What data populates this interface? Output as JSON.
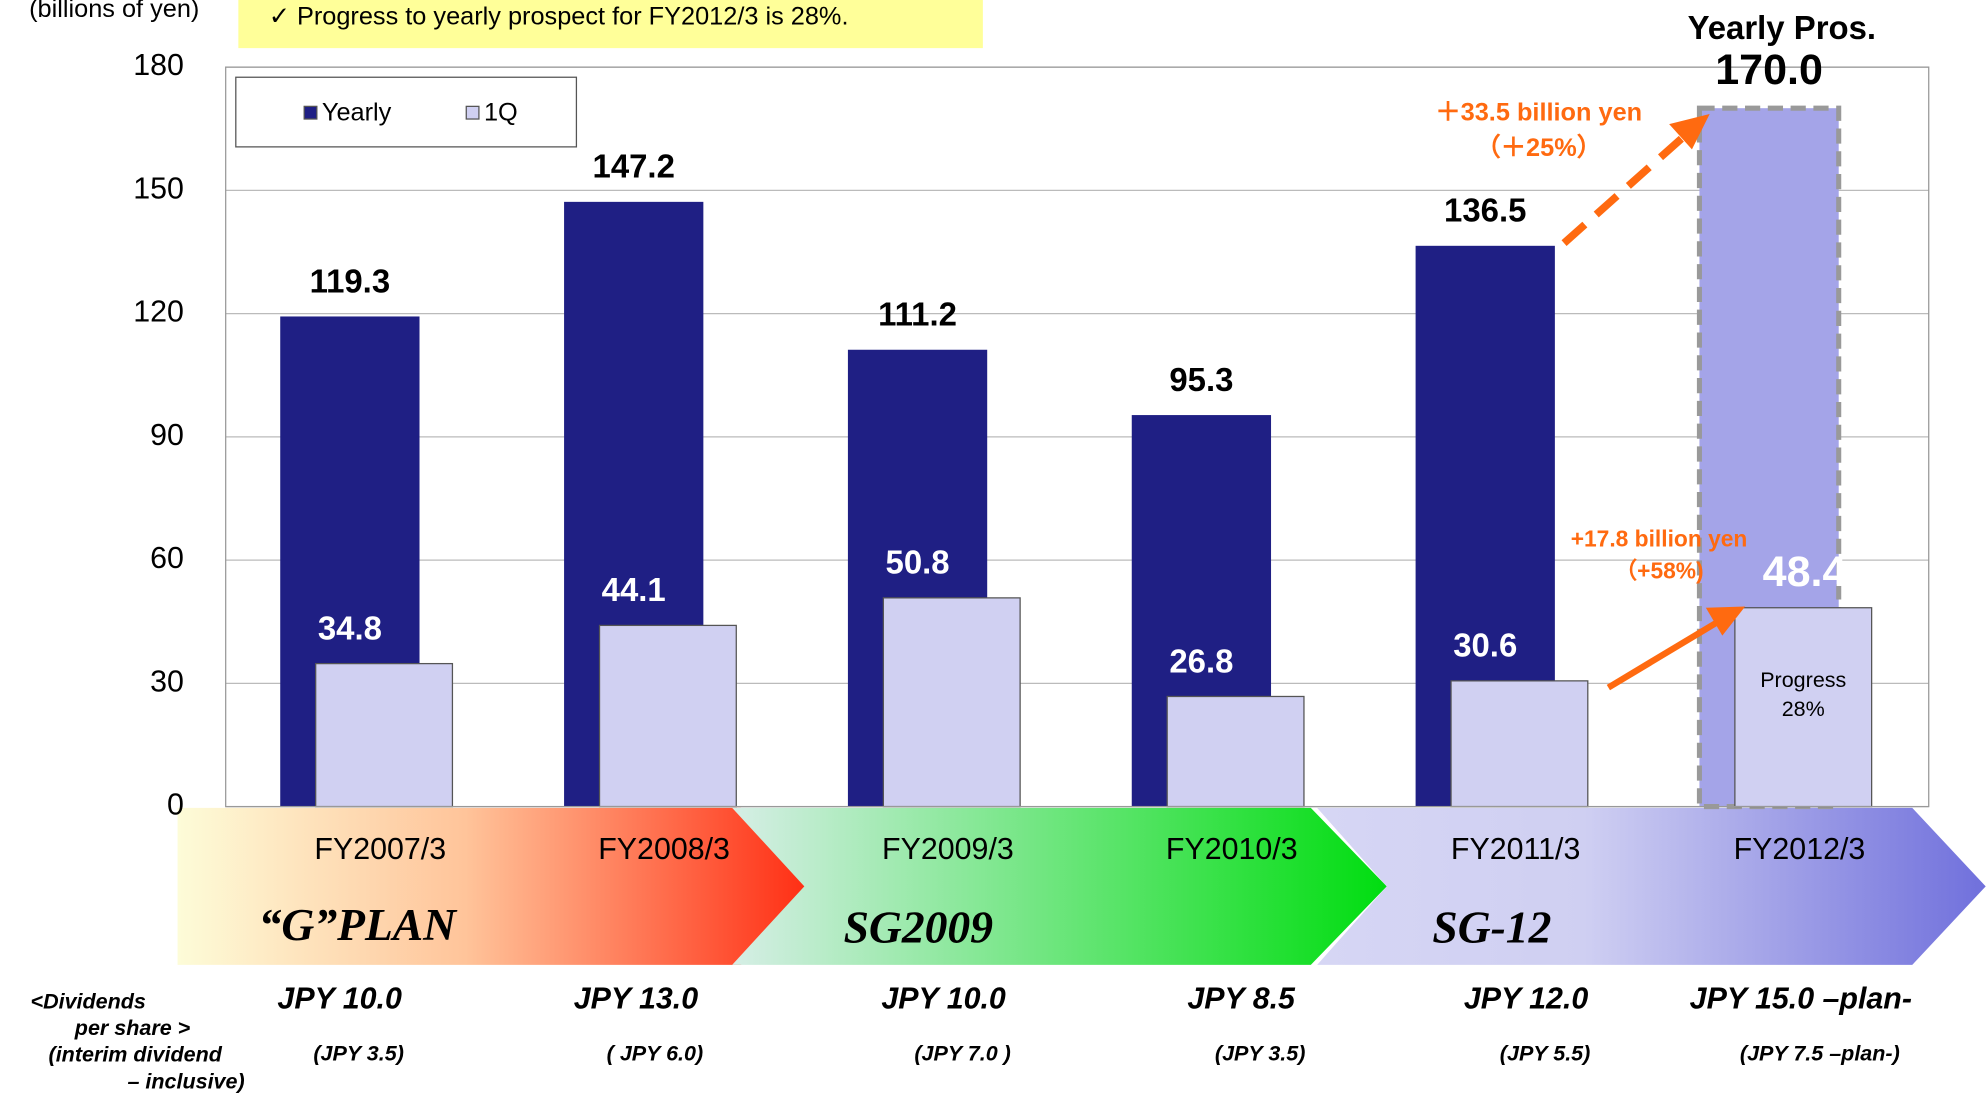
{
  "chart_data": {
    "type": "bar",
    "y_axis_label": "(billions of yen)",
    "note": "✓ Progress to yearly prospect for FY2012/3 is 28%.",
    "categories": [
      "FY2007/3",
      "FY2008/3",
      "FY2009/3",
      "FY2010/3",
      "FY2011/3",
      "FY2012/3"
    ],
    "series": [
      {
        "name": "Yearly",
        "color": "#1f1f84",
        "point_colors": [
          "#1f1f84",
          "#1f1f84",
          "#1f1f84",
          "#1f1f84",
          "#1f1f84",
          "#a4a4e8"
        ],
        "values": [
          119.3,
          147.2,
          111.2,
          95.3,
          136.5,
          170.0
        ],
        "value_labels": [
          "119.3",
          "147.2",
          "111.2",
          "95.3",
          "136.5",
          "170.0"
        ]
      },
      {
        "name": "1Q",
        "color": "#d0d0f2",
        "values": [
          34.8,
          44.1,
          50.8,
          26.8,
          30.6,
          48.4
        ],
        "value_labels": [
          "34.8",
          "44.1",
          "50.8",
          "26.8",
          "30.6",
          "48.4"
        ]
      }
    ],
    "ylim": [
      0,
      180
    ],
    "yticks": [
      0,
      30,
      60,
      90,
      120,
      150,
      180
    ],
    "grid": true,
    "legend": "top-left",
    "annotations": {
      "yearly_pros": "Yearly Pros.",
      "yearly_change": "＋33.5 billion yen",
      "yearly_change_pct": "（＋25%）",
      "q1_change": "+17.8 billion yen",
      "q1_change_pct": "（+58%)",
      "progress": "Progress",
      "progress_pct": "28%"
    },
    "plans": [
      "“G”PLAN",
      "SG2009",
      "SG-12"
    ],
    "dividends": {
      "label": [
        "<Dividends",
        "per share >",
        "(interim dividend",
        "– inclusive)"
      ],
      "values": [
        "JPY 10.0",
        "JPY 13.0",
        "JPY 10.0",
        "JPY 8.5",
        "JPY 12.0",
        "JPY 15.0 –plan-"
      ],
      "interim": [
        "(JPY 3.5)",
        "( JPY 6.0)",
        "(JPY 7.0 )",
        "(JPY 3.5)",
        "(JPY 5.5)",
        "(JPY 7.5 –plan-)"
      ]
    }
  }
}
